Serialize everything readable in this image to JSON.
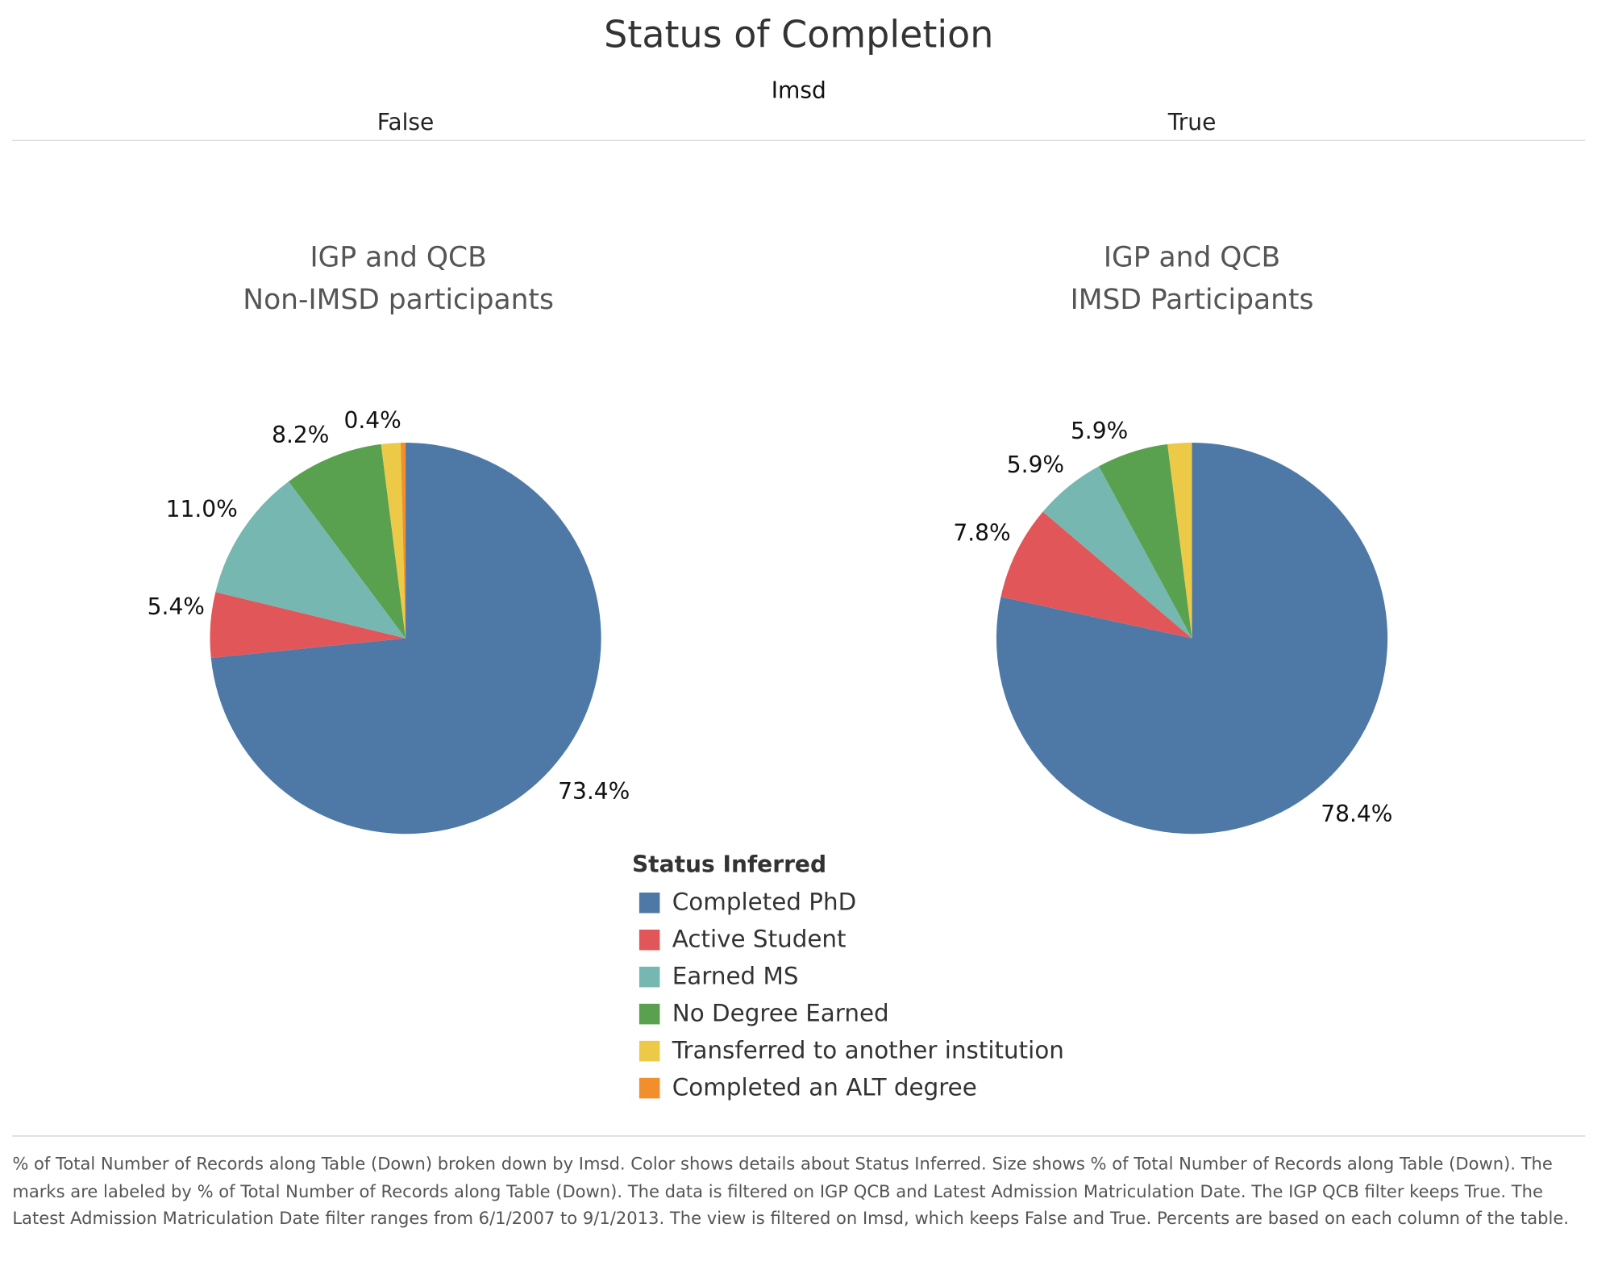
{
  "chart_data": {
    "type": "pie",
    "title": "Status of Completion",
    "column_header": "Imsd",
    "legend": {
      "title": "Status Inferred",
      "position": "bottom-center",
      "entries": [
        {
          "name": "Completed PhD",
          "color": "#4e79a7"
        },
        {
          "name": "Active Student",
          "color": "#e15759"
        },
        {
          "name": "Earned MS",
          "color": "#76b7b2"
        },
        {
          "name": "No Degree Earned",
          "color": "#59a14f"
        },
        {
          "name": "Transferred to another institution",
          "color": "#edc948"
        },
        {
          "name": "Completed an ALT degree",
          "color": "#f28e2b"
        }
      ]
    },
    "pies": [
      {
        "column": "False",
        "title_line1": "IGP and QCB",
        "title_line2": "Non-IMSD participants",
        "slices": [
          {
            "category": "Completed PhD",
            "value": 73.4,
            "label": "73.4%"
          },
          {
            "category": "Active Student",
            "value": 5.4,
            "label": "5.4%"
          },
          {
            "category": "Earned MS",
            "value": 11.0,
            "label": "11.0%"
          },
          {
            "category": "No Degree Earned",
            "value": 8.2,
            "label": "8.2%"
          },
          {
            "category": "Transferred to another institution",
            "value": 1.6,
            "label": ""
          },
          {
            "category": "Completed an ALT degree",
            "value": 0.4,
            "label": "0.4%"
          }
        ]
      },
      {
        "column": "True",
        "title_line1": "IGP and QCB",
        "title_line2": "IMSD Participants",
        "slices": [
          {
            "category": "Completed PhD",
            "value": 78.4,
            "label": "78.4%"
          },
          {
            "category": "Active Student",
            "value": 7.8,
            "label": "7.8%"
          },
          {
            "category": "Earned MS",
            "value": 5.9,
            "label": "5.9%"
          },
          {
            "category": "No Degree Earned",
            "value": 5.9,
            "label": "5.9%"
          },
          {
            "category": "Transferred to another institution",
            "value": 2.0,
            "label": ""
          }
        ]
      }
    ]
  },
  "footer": "% of Total Number of Records along Table (Down) broken down by Imsd.  Color shows details about Status Inferred.  Size shows % of Total Number of Records along Table (Down).  The marks are labeled by % of Total Number of Records along Table (Down). The data is filtered on IGP QCB and Latest Admission Matriculation Date. The IGP QCB filter keeps True. The Latest Admission Matriculation Date filter ranges from 6/1/2007 to 9/1/2013. The view is filtered on Imsd, which keeps False and True. Percents are based on each column of the table."
}
